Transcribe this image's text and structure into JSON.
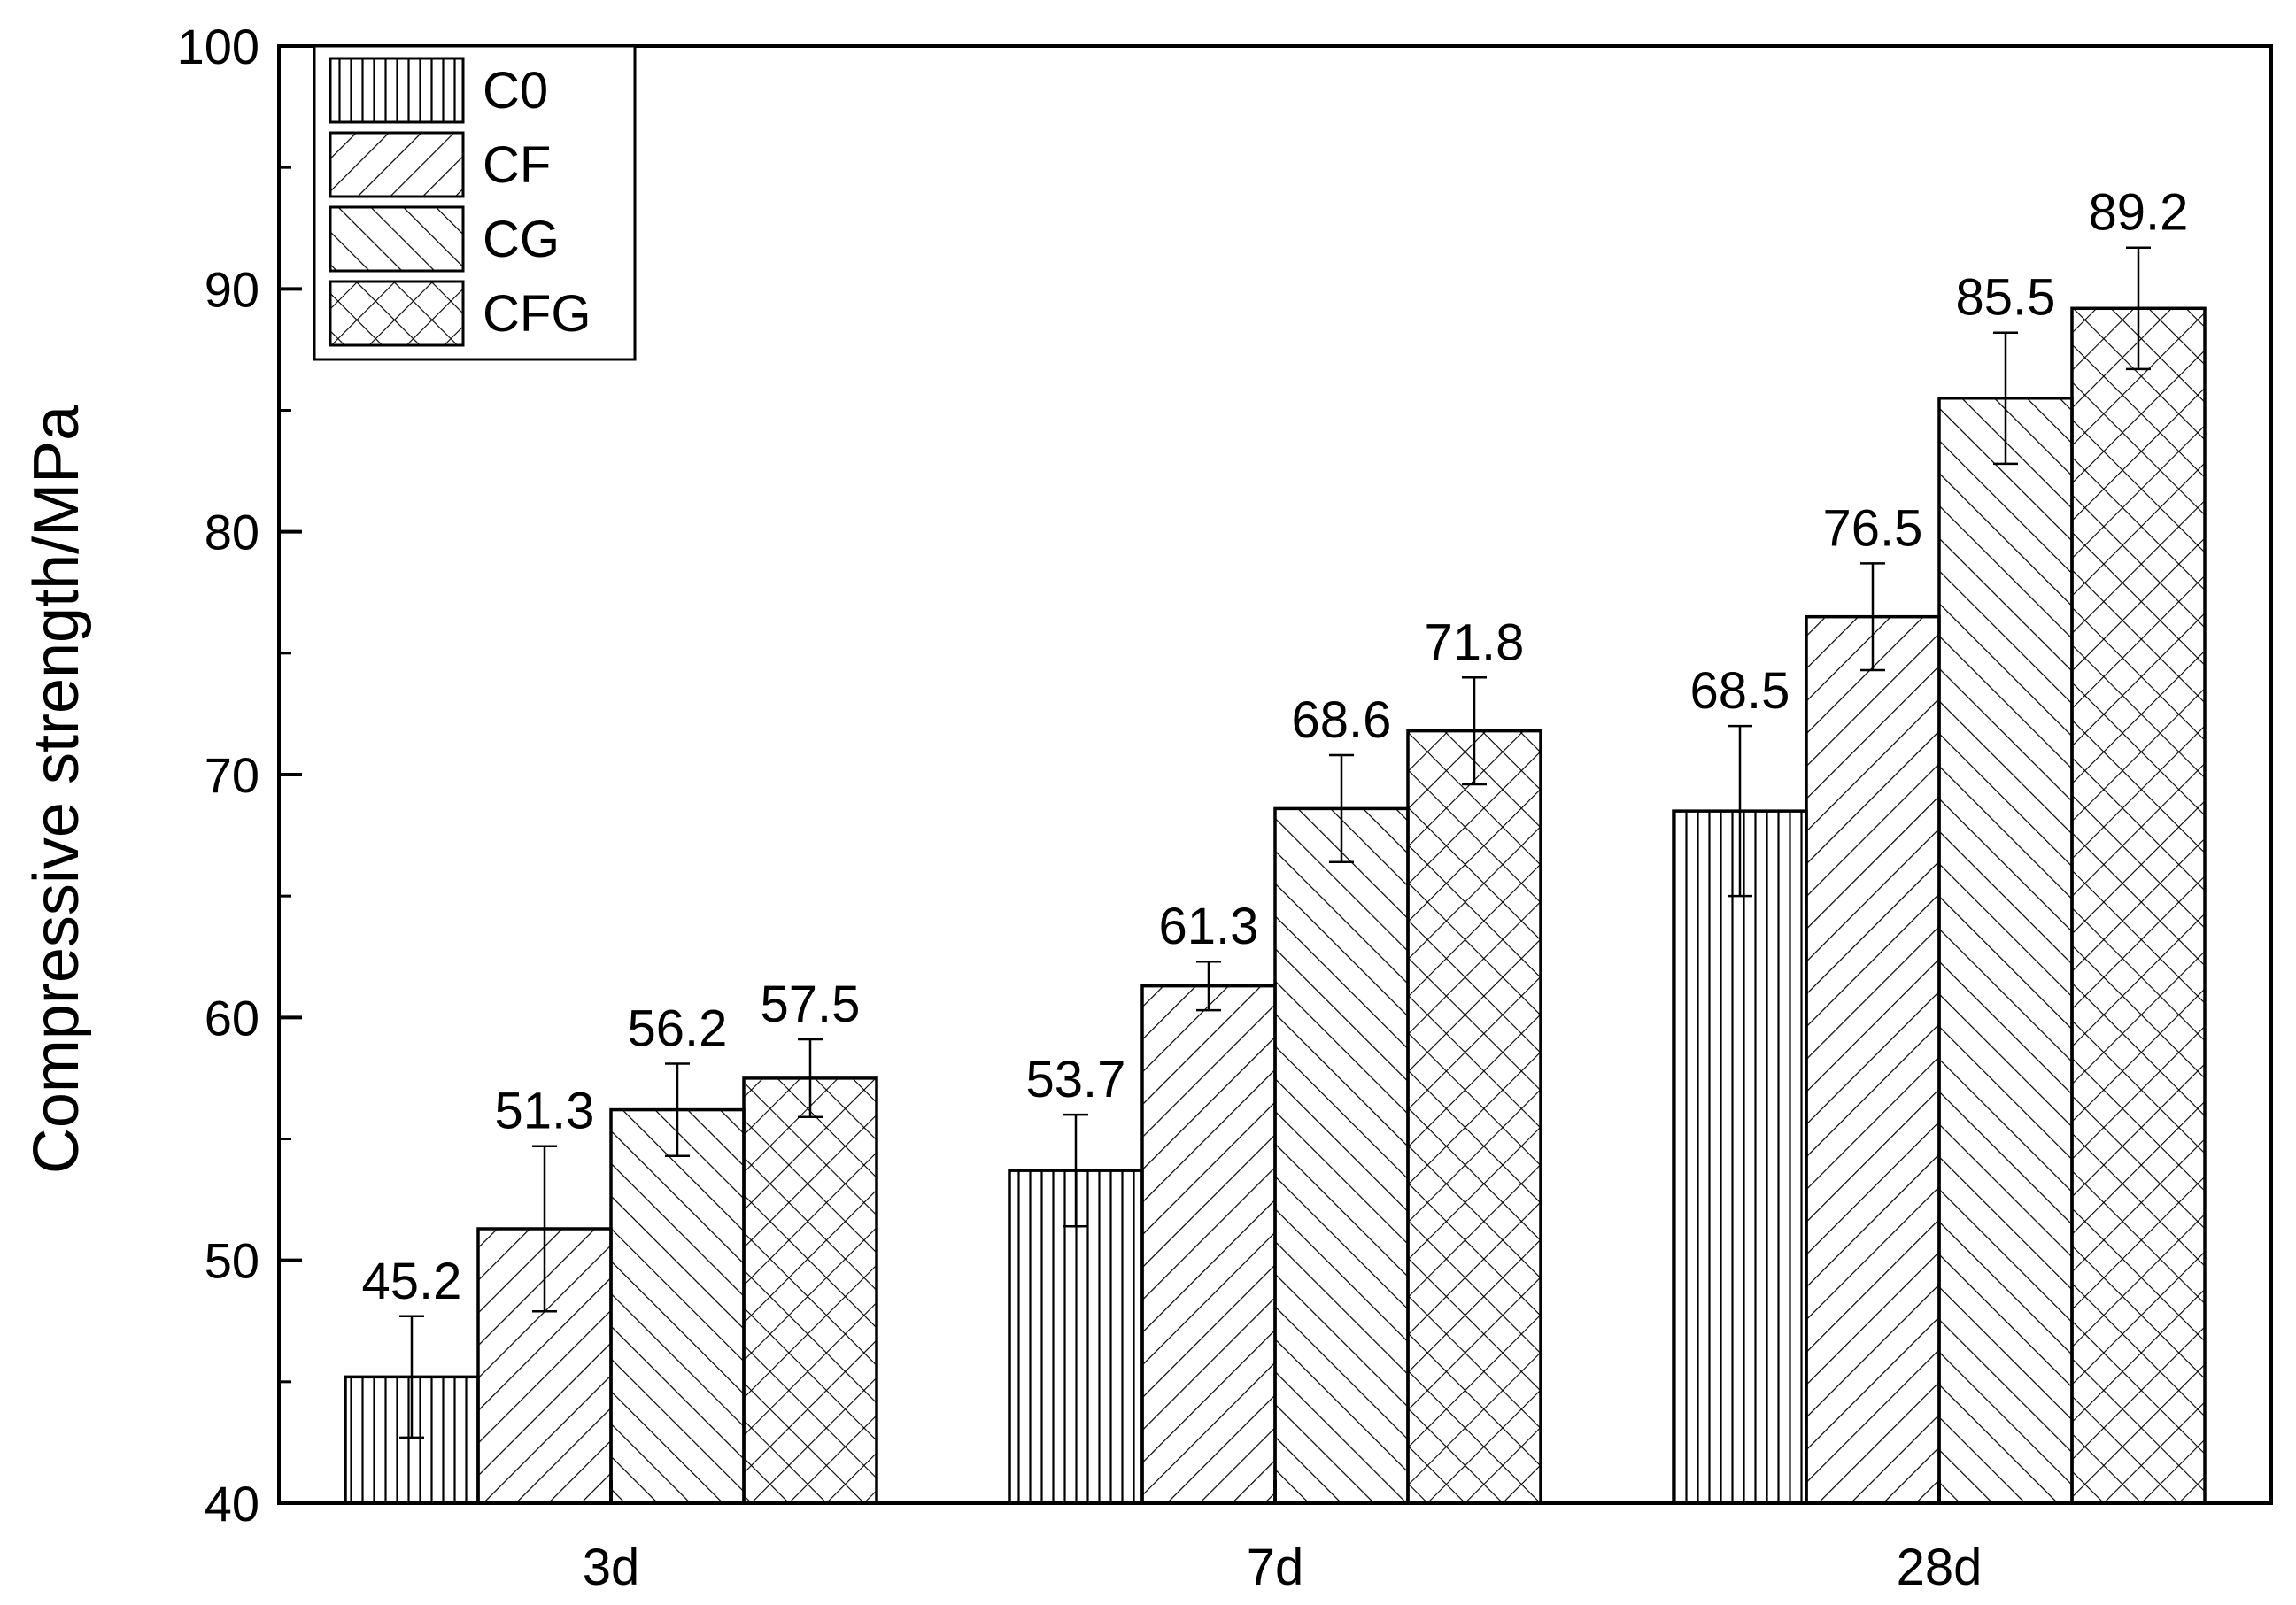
{
  "chart_data": {
    "type": "bar",
    "title": "",
    "xlabel": "",
    "ylabel": "Compressive strength/MPa",
    "ylim": [
      40,
      100
    ],
    "yticks": [
      40,
      50,
      60,
      70,
      80,
      90,
      100
    ],
    "grid": false,
    "legend_position": "top-left",
    "categories": [
      "3d",
      "7d",
      "28d"
    ],
    "series": [
      {
        "name": "C0",
        "pattern": "vertical-lines",
        "values": [
          45.2,
          53.7,
          68.5
        ],
        "errors": [
          2.5,
          2.3,
          3.5
        ],
        "labels": [
          "45.2",
          "53.7",
          "68.5"
        ]
      },
      {
        "name": "CF",
        "pattern": "diagonal-forward",
        "values": [
          51.3,
          61.3,
          76.5
        ],
        "errors": [
          3.4,
          1.0,
          2.2
        ],
        "labels": [
          "51.3",
          "61.3",
          "76.5"
        ]
      },
      {
        "name": "CG",
        "pattern": "diagonal-backward",
        "values": [
          56.2,
          68.6,
          85.5
        ],
        "errors": [
          1.9,
          2.2,
          2.7
        ],
        "labels": [
          "56.2",
          "68.6",
          "85.5"
        ]
      },
      {
        "name": "CFG",
        "pattern": "crosshatch",
        "values": [
          57.5,
          71.8,
          89.2
        ],
        "errors": [
          1.6,
          2.2,
          2.5
        ],
        "labels": [
          "57.5",
          "71.8",
          "89.2"
        ]
      }
    ],
    "colors": {
      "stroke": "#000000",
      "fill": "#ffffff"
    }
  }
}
